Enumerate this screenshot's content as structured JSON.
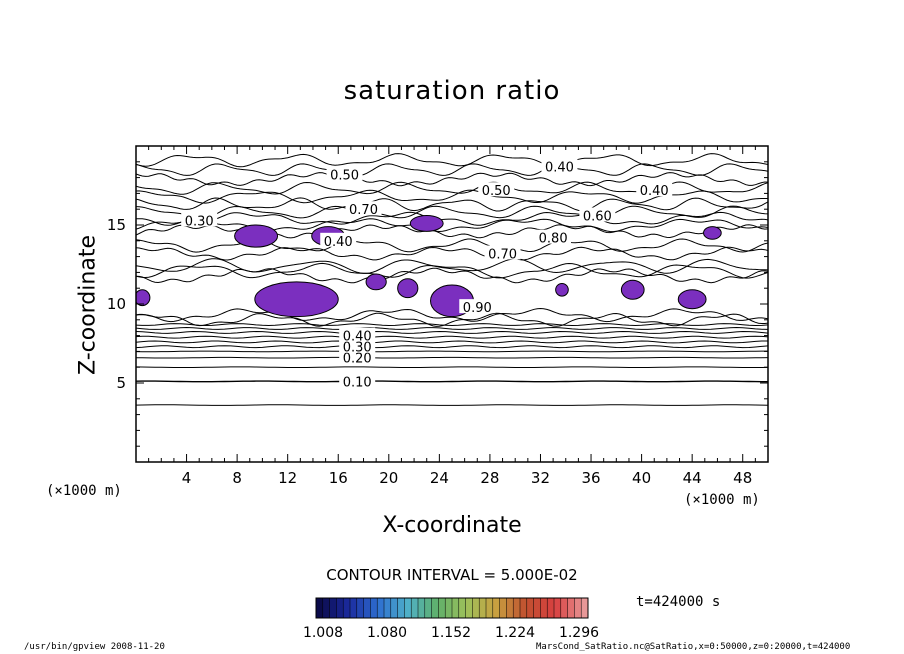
{
  "chart_data": {
    "type": "heatmap",
    "title": "saturation ratio",
    "xlabel": "X-coordinate",
    "ylabel": "Z-coordinate",
    "x_unit": "(×1000 m)",
    "z_unit": "(×1000 m)",
    "xlim": [
      0,
      50
    ],
    "ylim": [
      0,
      20
    ],
    "x_ticks": [
      4,
      8,
      12,
      16,
      20,
      24,
      28,
      32,
      36,
      40,
      44,
      48
    ],
    "y_ticks": [
      5,
      10,
      15
    ],
    "contour_interval_label": "CONTOUR INTERVAL = 5.000E-02",
    "contour_labels": [
      {
        "text": "0.10",
        "x": 17.5,
        "z": 5.1
      },
      {
        "text": "0.20",
        "x": 17.5,
        "z": 6.6
      },
      {
        "text": "0.30",
        "x": 17.5,
        "z": 7.3
      },
      {
        "text": "0.40",
        "x": 17.5,
        "z": 8.0
      },
      {
        "text": "0.40",
        "x": 33.5,
        "z": 18.7
      },
      {
        "text": "0.40",
        "x": 41.0,
        "z": 17.2
      },
      {
        "text": "0.50",
        "x": 16.5,
        "z": 18.2
      },
      {
        "text": "0.50",
        "x": 28.5,
        "z": 17.2
      },
      {
        "text": "0.30",
        "x": 5.0,
        "z": 15.3
      },
      {
        "text": "0.70",
        "x": 18.0,
        "z": 16.0
      },
      {
        "text": "0.60",
        "x": 36.5,
        "z": 15.6
      },
      {
        "text": "0.80",
        "x": 33.0,
        "z": 14.2
      },
      {
        "text": "0.70",
        "x": 29.0,
        "z": 13.2
      },
      {
        "text": "0.40",
        "x": 16.0,
        "z": 14.0
      },
      {
        "text": "0.90",
        "x": 27.0,
        "z": 9.8
      }
    ],
    "filled_regions_color": "#7b2fbf",
    "filled_regions": [
      {
        "x": 0.5,
        "z": 10.4,
        "rx": 0.6,
        "rz": 0.5
      },
      {
        "x": 9.5,
        "z": 14.3,
        "rx": 1.7,
        "rz": 0.7
      },
      {
        "x": 15.2,
        "z": 14.3,
        "rx": 1.3,
        "rz": 0.6
      },
      {
        "x": 23.0,
        "z": 15.1,
        "rx": 1.3,
        "rz": 0.5
      },
      {
        "x": 45.6,
        "z": 14.5,
        "rx": 0.7,
        "rz": 0.4
      },
      {
        "x": 12.7,
        "z": 10.3,
        "rx": 3.3,
        "rz": 1.1
      },
      {
        "x": 19.0,
        "z": 11.4,
        "rx": 0.8,
        "rz": 0.5
      },
      {
        "x": 21.5,
        "z": 11.0,
        "rx": 0.8,
        "rz": 0.6
      },
      {
        "x": 25.0,
        "z": 10.2,
        "rx": 1.7,
        "rz": 1.0
      },
      {
        "x": 33.7,
        "z": 10.9,
        "rx": 0.5,
        "rz": 0.4
      },
      {
        "x": 39.3,
        "z": 10.9,
        "rx": 0.9,
        "rz": 0.6
      },
      {
        "x": 44.0,
        "z": 10.3,
        "rx": 1.1,
        "rz": 0.6
      }
    ],
    "colorbar": {
      "ticks": [
        "1.008",
        "1.080",
        "1.152",
        "1.224",
        "1.296"
      ],
      "colors": [
        "#0b0b4a",
        "#1b2a9e",
        "#2e6fd0",
        "#4fb0c8",
        "#5fb06a",
        "#9fc05a",
        "#c8a040",
        "#c05030",
        "#d84040",
        "#e89898"
      ]
    },
    "time_label": "t=424000 s"
  },
  "footer": {
    "left": "/usr/bin/gpview  2008-11-20",
    "right": "MarsCond_SatRatio.nc@SatRatio,x=0:50000,z=0:20000,t=424000"
  }
}
